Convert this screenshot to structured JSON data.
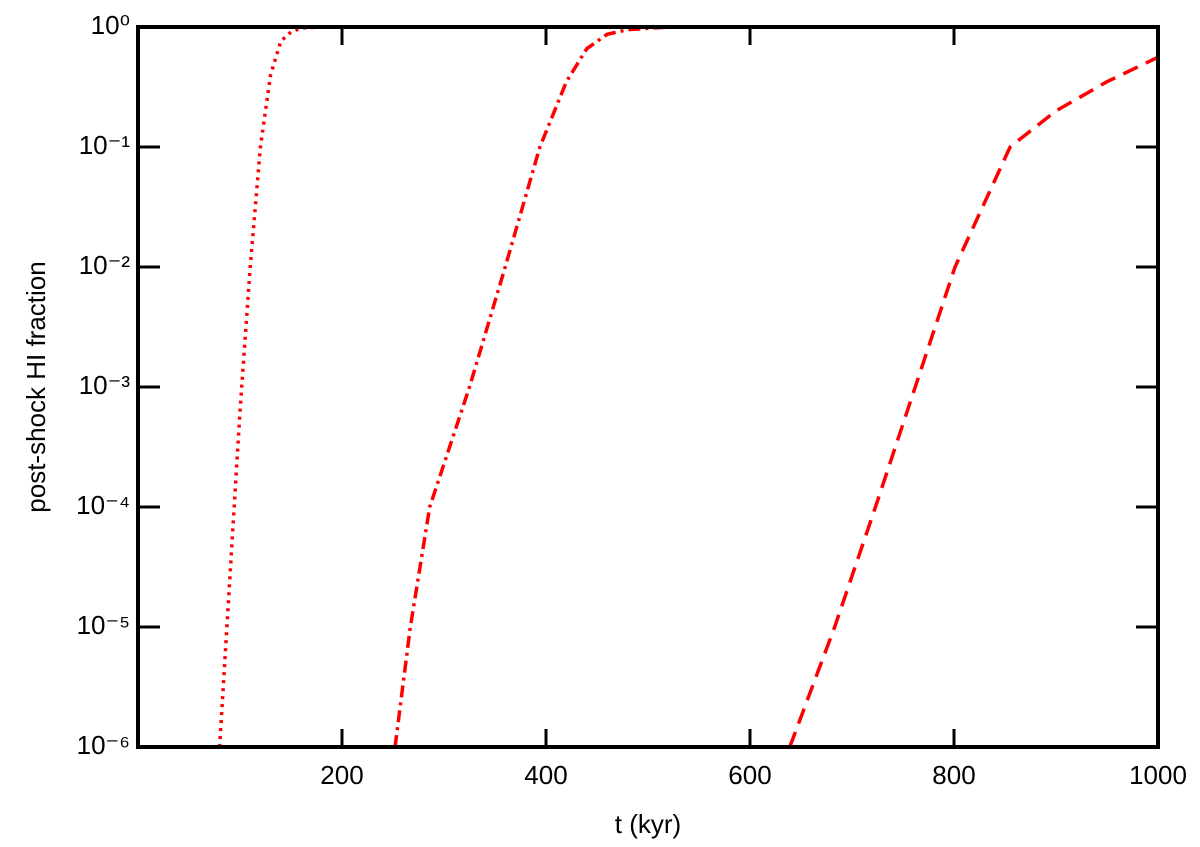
{
  "chart_data": {
    "type": "line",
    "xlabel": "t (kyr)",
    "ylabel": "post-shock HI fraction",
    "xlim": [
      0,
      1000
    ],
    "ylim": [
      1e-06,
      1
    ],
    "yscale": "log",
    "xticks": [
      200,
      400,
      600,
      800,
      1000
    ],
    "yticks": [
      {
        "value": 1,
        "label": "10⁰"
      },
      {
        "value": 0.1,
        "label": "10⁻¹"
      },
      {
        "value": 0.01,
        "label": "10⁻²"
      },
      {
        "value": 0.001,
        "label": "10⁻³"
      },
      {
        "value": 0.0001,
        "label": "10⁻⁴"
      },
      {
        "value": 1e-05,
        "label": "10⁻⁵"
      },
      {
        "value": 1e-06,
        "label": "10⁻⁶"
      }
    ],
    "series": [
      {
        "color": "#ff0000",
        "linestyle": "dotted",
        "x": [
          80,
          90,
          100,
          110,
          120,
          130,
          140,
          150,
          160,
          180,
          1000
        ],
        "values": [
          1e-06,
          2.5e-05,
          0.00063,
          0.01,
          0.1,
          0.4,
          0.76,
          0.91,
          0.98,
          1,
          1
        ]
      },
      {
        "color": "#ff0000",
        "linestyle": "dashdot",
        "x": [
          252,
          267,
          286,
          325,
          360,
          394,
          420,
          440,
          460,
          480,
          520,
          1000
        ],
        "values": [
          1e-06,
          1e-05,
          0.0001,
          0.001,
          0.01,
          0.1,
          0.35,
          0.66,
          0.87,
          0.95,
          1,
          1
        ]
      },
      {
        "color": "#ff0000",
        "linestyle": "dashed",
        "x": [
          639,
          683,
          723,
          762,
          801,
          855,
          900,
          950,
          1000
        ],
        "values": [
          1e-06,
          1e-05,
          0.0001,
          0.001,
          0.01,
          0.1,
          0.2,
          0.35,
          0.56
        ]
      }
    ]
  }
}
